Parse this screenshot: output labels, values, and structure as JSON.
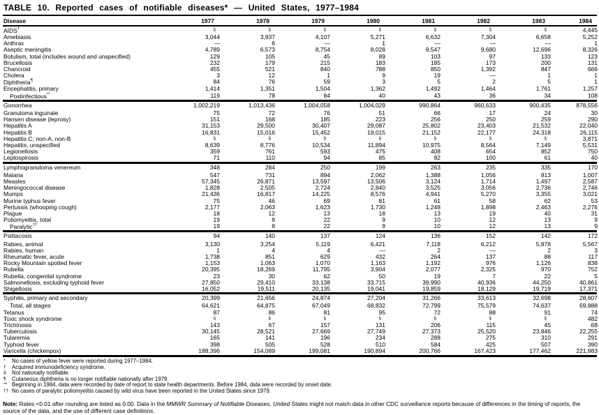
{
  "colors": {
    "text": "#000000",
    "background": "#ffffff"
  },
  "title": "TABLE 10. Reported cases of notifiable diseases* — United States, 1977–1984",
  "columns": [
    "Disease",
    "1977",
    "1978",
    "1979",
    "1980",
    "1981",
    "1982",
    "1983",
    "1984"
  ],
  "sections": [
    {
      "gap_after_first": false,
      "rows": [
        {
          "name": "AIDS",
          "sup": "†",
          "indent": false,
          "values": [
            "§",
            "§",
            "§",
            "§",
            "§",
            "§",
            "§",
            "4,445"
          ]
        },
        {
          "name": "Amebiasis",
          "indent": false,
          "values": [
            "3,044",
            "3,937",
            "4,107",
            "5,271",
            "6,632",
            "7,304",
            "6,658",
            "5,252"
          ]
        },
        {
          "name": "Anthrax",
          "indent": false,
          "values": [
            "—",
            "6",
            "—",
            "1",
            "—",
            "—",
            "—",
            "1"
          ]
        },
        {
          "name": "Aseptic meningitis",
          "indent": false,
          "values": [
            "4,789",
            "6,573",
            "8,754",
            "8,028",
            "9,547",
            "9,680",
            "12,696",
            "8,326"
          ]
        },
        {
          "name": "Botulism, total (includes wound and unspecified)",
          "indent": false,
          "values": [
            "129",
            "105",
            "45",
            "89",
            "103",
            "97",
            "133",
            "123"
          ]
        },
        {
          "name": "Brucellosis",
          "indent": false,
          "values": [
            "232",
            "179",
            "215",
            "183",
            "185",
            "173",
            "200",
            "131"
          ]
        },
        {
          "name": "Chancroid",
          "indent": false,
          "values": [
            "455",
            "521",
            "840",
            "788",
            "850",
            "1,392",
            "847",
            "666"
          ]
        },
        {
          "name": "Cholera",
          "indent": false,
          "values": [
            "3",
            "12",
            "1",
            "9",
            "19",
            "—",
            "1",
            "1"
          ]
        },
        {
          "name": "Diphtheria",
          "sup": "¶",
          "indent": false,
          "values": [
            "84",
            "76",
            "59",
            "3",
            "5",
            "2",
            "5",
            "1"
          ]
        },
        {
          "name": "Encephalitis, primary",
          "indent": false,
          "values": [
            "1,414",
            "1,351",
            "1,504",
            "1,362",
            "1,492",
            "1,464",
            "1,761",
            "1,257"
          ]
        },
        {
          "name": "Postinfectious",
          "sup": "**",
          "indent": true,
          "values": [
            "119",
            "78",
            "84",
            "40",
            "43",
            "36",
            "34",
            "108"
          ]
        }
      ]
    },
    {
      "gap_after_first": true,
      "rows": [
        {
          "name": "Gonorrhea",
          "indent": false,
          "values": [
            "1,002,219",
            "1,013,436",
            "1,004,058",
            "1,004,029",
            "990,864",
            "960,633",
            "900,435",
            "878,556"
          ]
        },
        {
          "name": "Granuloma inguinale",
          "indent": false,
          "values": [
            "75",
            "72",
            "76",
            "51",
            "66",
            "17",
            "24",
            "30"
          ]
        },
        {
          "name": "Hansen disease (leprosy)",
          "indent": false,
          "values": [
            "151",
            "168",
            "185",
            "223",
            "256",
            "250",
            "259",
            "290"
          ]
        },
        {
          "name": "Hepatitis A",
          "indent": false,
          "values": [
            "31,153",
            "29,500",
            "30,407",
            "29,087",
            "25,802",
            "23,403",
            "21,532",
            "22,040"
          ]
        },
        {
          "name": "Hepatitis B",
          "indent": false,
          "values": [
            "16,831",
            "15,016",
            "15,452",
            "19,015",
            "21,152",
            "22,177",
            "24,318",
            "26,115"
          ]
        },
        {
          "name": "Hepatitis C; non-A, non-B",
          "indent": false,
          "values": [
            "§",
            "§",
            "§",
            "§",
            "§",
            "§",
            "§",
            "3,871"
          ]
        },
        {
          "name": "Hepatitis, unspecified",
          "indent": false,
          "values": [
            "8,639",
            "8,776",
            "10,534",
            "11,894",
            "10,975",
            "8,564",
            "7,149",
            "5,531"
          ]
        },
        {
          "name": "Legionellosis",
          "indent": false,
          "values": [
            "359",
            "761",
            "593",
            "475",
            "408",
            "654",
            "852",
            "750"
          ]
        },
        {
          "name": "Leptospirosis",
          "indent": false,
          "values": [
            "71",
            "110",
            "94",
            "85",
            "82",
            "100",
            "61",
            "40"
          ]
        }
      ]
    },
    {
      "gap_after_first": true,
      "rows": [
        {
          "name": "Lymphogranuloma venereum",
          "indent": false,
          "values": [
            "348",
            "284",
            "250",
            "199",
            "263",
            "235",
            "335",
            "170"
          ]
        },
        {
          "name": "Malaria",
          "indent": false,
          "values": [
            "547",
            "731",
            "894",
            "2,062",
            "1,388",
            "1,056",
            "813",
            "1,007"
          ]
        },
        {
          "name": "Measles",
          "indent": false,
          "values": [
            "57,345",
            "26,871",
            "13,597",
            "13,506",
            "3,124",
            "1,714",
            "1,497",
            "2,587"
          ]
        },
        {
          "name": "Meningococcal disease",
          "indent": false,
          "values": [
            "1,828",
            "2,505",
            "2,724",
            "2,840",
            "3,525",
            "3,056",
            "2,736",
            "2,746"
          ]
        },
        {
          "name": "Mumps",
          "indent": false,
          "values": [
            "21,436",
            "16,817",
            "14,225",
            "8,576",
            "4,941",
            "5,270",
            "3,355",
            "3,021"
          ]
        },
        {
          "name": "Murine typhus fever",
          "indent": false,
          "values": [
            "75",
            "46",
            "69",
            "81",
            "61",
            "58",
            "62",
            "53"
          ]
        },
        {
          "name": "Pertussis (whooping cough)",
          "indent": false,
          "values": [
            "2,177",
            "2,063",
            "1,623",
            "1,730",
            "1,248",
            "1,898",
            "2,463",
            "2,276"
          ]
        },
        {
          "name": "Plague",
          "indent": false,
          "values": [
            "18",
            "12",
            "13",
            "18",
            "13",
            "19",
            "40",
            "31"
          ]
        },
        {
          "name": "Poliomyelitis, total",
          "indent": false,
          "values": [
            "19",
            "8",
            "22",
            "9",
            "10",
            "12",
            "13",
            "9"
          ]
        },
        {
          "name": "Paralytic",
          "sup": "††",
          "indent": true,
          "values": [
            "19",
            "8",
            "22",
            "9",
            "10",
            "12",
            "13",
            "9"
          ]
        }
      ]
    },
    {
      "gap_after_first": true,
      "rows": [
        {
          "name": "Psittacosis",
          "indent": false,
          "values": [
            "94",
            "140",
            "137",
            "124",
            "136",
            "152",
            "142",
            "172"
          ]
        },
        {
          "name": "Rabies, animal",
          "indent": false,
          "values": [
            "3,130",
            "3,254",
            "5,119",
            "6,421",
            "7,118",
            "6,212",
            "5,878",
            "5,567"
          ]
        },
        {
          "name": "Rabies, human",
          "indent": false,
          "values": [
            "1",
            "4",
            "4",
            "—",
            "2",
            "—",
            "2",
            "3"
          ]
        },
        {
          "name": "Rheumatic fever, acute",
          "indent": false,
          "values": [
            "1,738",
            "851",
            "629",
            "432",
            "264",
            "137",
            "88",
            "117"
          ]
        },
        {
          "name": "Rocky Mountain spotted fever",
          "indent": false,
          "values": [
            "1,153",
            "1,063",
            "1,070",
            "1,163",
            "1,192",
            "976",
            "1,126",
            "838"
          ]
        },
        {
          "name": "Rubella",
          "indent": false,
          "values": [
            "20,395",
            "18,269",
            "11,795",
            "3,904",
            "2,077",
            "2,325",
            "970",
            "752"
          ]
        },
        {
          "name": "Rubella, congenital syndrome",
          "indent": false,
          "values": [
            "23",
            "30",
            "62",
            "50",
            "19",
            "7",
            "22",
            "5"
          ]
        },
        {
          "name": "Salmonellosis, excluding typhoid fever",
          "indent": false,
          "values": [
            "27,850",
            "29,410",
            "33,138",
            "33,715",
            "39,990",
            "40,936",
            "44,250",
            "40,861"
          ]
        },
        {
          "name": "Shigellosis",
          "indent": false,
          "values": [
            "16,052",
            "19,511",
            "20,135",
            "19,041",
            "19,859",
            "18,129",
            "19,719",
            "17,371"
          ]
        }
      ]
    },
    {
      "gap_after_first": true,
      "rows": [
        {
          "name": "Syphilis, primary and secondary",
          "indent": false,
          "values": [
            "20,399",
            "21,656",
            "24,874",
            "27,204",
            "31,266",
            "33,613",
            "32,698",
            "28,607"
          ]
        },
        {
          "name": "Total, all stages",
          "indent": true,
          "values": [
            "64,621",
            "64,875",
            "67,049",
            "68,832",
            "72,799",
            "75,579",
            "74,637",
            "69,888"
          ]
        },
        {
          "name": "Tetanus",
          "indent": false,
          "values": [
            "87",
            "86",
            "81",
            "95",
            "72",
            "88",
            "91",
            "74"
          ]
        },
        {
          "name": "Toxic shock syndrome",
          "indent": false,
          "values": [
            "§",
            "§",
            "§",
            "§",
            "§",
            "§",
            "§",
            "482"
          ]
        },
        {
          "name": "Trichinosis",
          "indent": false,
          "values": [
            "143",
            "67",
            "157",
            "131",
            "206",
            "115",
            "45",
            "68"
          ]
        },
        {
          "name": "Tuberculosis",
          "indent": false,
          "values": [
            "30,145",
            "28,521",
            "27,669",
            "27,749",
            "27,373",
            "25,520",
            "23,846",
            "22,255"
          ]
        },
        {
          "name": "Tularemia",
          "indent": false,
          "values": [
            "165",
            "141",
            "196",
            "234",
            "288",
            "275",
            "310",
            "291"
          ]
        },
        {
          "name": "Typhoid fever",
          "indent": false,
          "values": [
            "398",
            "505",
            "528",
            "510",
            "584",
            "425",
            "507",
            "390"
          ]
        },
        {
          "name": "Varicella (chickenpox)",
          "indent": false,
          "values": [
            "188,396",
            "154,089",
            "199,081",
            "190,894",
            "200,766",
            "167,423",
            "177,462",
            "221,983"
          ]
        }
      ]
    }
  ],
  "footnotes": [
    {
      "sym": "*",
      "text": "No cases of yellow fever were reported during 1977–1984."
    },
    {
      "sym": "†",
      "text": "Acquired immunodeficiency syndrome."
    },
    {
      "sym": "§",
      "text": "Not nationally notifiable."
    },
    {
      "sym": "¶",
      "text": "Cutaneous diphtheria is no longer notifiable nationally after 1979."
    },
    {
      "sym": "**",
      "text": "Beginning in 1984, data were recorded by date of report to state health departments.  Before 1984, data were recorded by onset date."
    },
    {
      "sym": "††",
      "text": "No cases of paralytic poliomyelitis caused by wild virus have been reported in the United States since 1979."
    }
  ],
  "note": {
    "label": "Note:",
    "pre": " Rates <0.01 after rounding are listed as 0.00. Data in the ",
    "italic": "MMWR Summary of Notifiable Diseases, United States",
    "post": " might not match data in other CDC surveillance reports because of differences in the timing of reports, the source of the data, and the use of different case definitions."
  }
}
